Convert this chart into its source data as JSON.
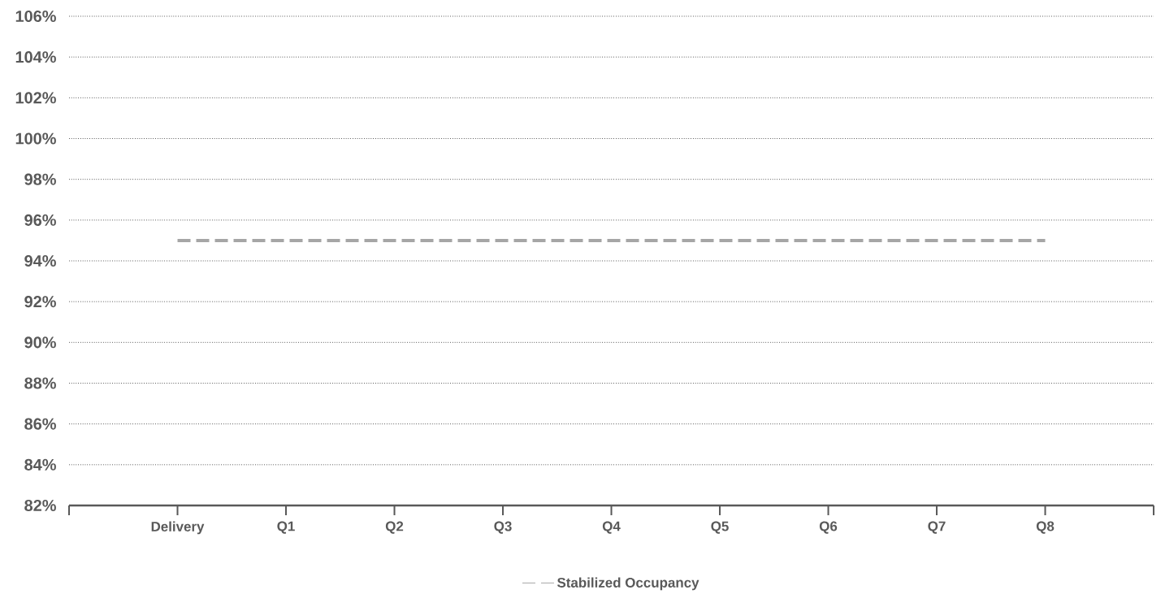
{
  "chart_data": {
    "type": "line",
    "categories": [
      "Delivery",
      "Q1",
      "Q2",
      "Q3",
      "Q4",
      "Q5",
      "Q6",
      "Q7",
      "Q8"
    ],
    "series": [
      {
        "name": "Stabilized Occupancy",
        "color": "#a6a6a6",
        "values": [
          95,
          95,
          95,
          95,
          95,
          95,
          95,
          95,
          95
        ],
        "line_style": "dashed"
      }
    ],
    "ylim": [
      82,
      106
    ],
    "yticks": [
      {
        "value": 82,
        "label": "82%"
      },
      {
        "value": 84,
        "label": "84%"
      },
      {
        "value": 86,
        "label": "86%"
      },
      {
        "value": 88,
        "label": "88%"
      },
      {
        "value": 90,
        "label": "90%"
      },
      {
        "value": 92,
        "label": "92%"
      },
      {
        "value": 94,
        "label": "94%"
      },
      {
        "value": 96,
        "label": "96%"
      },
      {
        "value": 98,
        "label": "98%"
      },
      {
        "value": 100,
        "label": "100%"
      },
      {
        "value": 102,
        "label": "102%"
      },
      {
        "value": 104,
        "label": "104%"
      },
      {
        "value": 106,
        "label": "106%"
      }
    ],
    "grid": "y",
    "legend": "bottom",
    "marker": "none"
  }
}
